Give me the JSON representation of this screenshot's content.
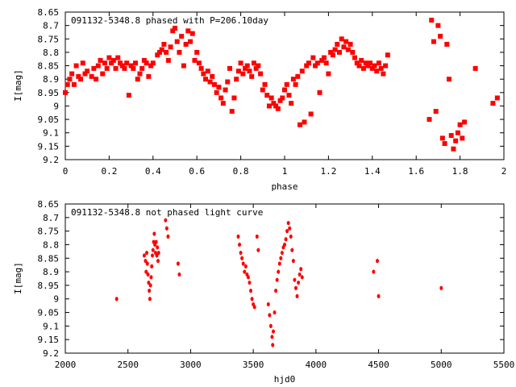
{
  "chart_data": [
    {
      "type": "scatter",
      "title": "091132-5348.8 phased with P=206.10day",
      "xlabel": "phase",
      "ylabel": "I[mag]",
      "xlim": [
        0,
        2
      ],
      "ylim": [
        8.65,
        9.2
      ],
      "y_inverted": true,
      "x_ticks": [
        "0",
        "0.2",
        "0.4",
        "0.6",
        "0.8",
        "1",
        "1.2",
        "1.4",
        "1.6",
        "1.8",
        "2"
      ],
      "y_ticks": [
        "8.65",
        "8.7",
        "8.75",
        "8.8",
        "8.85",
        "8.9",
        "8.95",
        "9",
        "9.05",
        "9.1",
        "9.15",
        "9.2"
      ],
      "grid": false,
      "marker_color": "#ff0000",
      "points": [
        [
          0.0,
          8.95
        ],
        [
          0.01,
          8.92
        ],
        [
          0.02,
          8.9
        ],
        [
          0.03,
          8.88
        ],
        [
          0.04,
          8.92
        ],
        [
          0.05,
          8.85
        ],
        [
          0.06,
          8.89
        ],
        [
          0.07,
          8.9
        ],
        [
          0.08,
          8.84
        ],
        [
          0.09,
          8.88
        ],
        [
          0.1,
          8.87
        ],
        [
          0.12,
          8.89
        ],
        [
          0.13,
          8.86
        ],
        [
          0.14,
          8.9
        ],
        [
          0.15,
          8.85
        ],
        [
          0.16,
          8.83
        ],
        [
          0.17,
          8.88
        ],
        [
          0.18,
          8.84
        ],
        [
          0.19,
          8.86
        ],
        [
          0.2,
          8.82
        ],
        [
          0.21,
          8.84
        ],
        [
          0.22,
          8.83
        ],
        [
          0.23,
          8.86
        ],
        [
          0.24,
          8.82
        ],
        [
          0.25,
          8.84
        ],
        [
          0.26,
          8.85
        ],
        [
          0.27,
          8.86
        ],
        [
          0.28,
          8.84
        ],
        [
          0.29,
          8.96
        ],
        [
          0.3,
          8.85
        ],
        [
          0.31,
          8.86
        ],
        [
          0.32,
          8.84
        ],
        [
          0.33,
          8.9
        ],
        [
          0.34,
          8.88
        ],
        [
          0.35,
          8.86
        ],
        [
          0.36,
          8.83
        ],
        [
          0.37,
          8.84
        ],
        [
          0.38,
          8.89
        ],
        [
          0.39,
          8.85
        ],
        [
          0.4,
          8.84
        ],
        [
          0.42,
          8.81
        ],
        [
          0.43,
          8.8
        ],
        [
          0.44,
          8.79
        ],
        [
          0.45,
          8.77
        ],
        [
          0.46,
          8.8
        ],
        [
          0.47,
          8.83
        ],
        [
          0.48,
          8.78
        ],
        [
          0.49,
          8.72
        ],
        [
          0.5,
          8.71
        ],
        [
          0.51,
          8.76
        ],
        [
          0.52,
          8.8
        ],
        [
          0.53,
          8.74
        ],
        [
          0.54,
          8.85
        ],
        [
          0.55,
          8.77
        ],
        [
          0.56,
          8.72
        ],
        [
          0.57,
          8.76
        ],
        [
          0.58,
          8.73
        ],
        [
          0.59,
          8.83
        ],
        [
          0.6,
          8.8
        ],
        [
          0.61,
          8.84
        ],
        [
          0.62,
          8.86
        ],
        [
          0.63,
          8.88
        ],
        [
          0.64,
          8.9
        ],
        [
          0.65,
          8.87
        ],
        [
          0.66,
          8.91
        ],
        [
          0.67,
          8.89
        ],
        [
          0.68,
          8.92
        ],
        [
          0.69,
          8.95
        ],
        [
          0.7,
          8.93
        ],
        [
          0.71,
          8.97
        ],
        [
          0.72,
          8.99
        ],
        [
          0.73,
          8.94
        ],
        [
          0.74,
          8.91
        ],
        [
          0.75,
          8.86
        ],
        [
          0.76,
          9.02
        ],
        [
          0.77,
          8.97
        ],
        [
          0.78,
          8.9
        ],
        [
          0.79,
          8.87
        ],
        [
          0.8,
          8.84
        ],
        [
          0.81,
          8.88
        ],
        [
          0.82,
          8.86
        ],
        [
          0.83,
          8.85
        ],
        [
          0.84,
          8.87
        ],
        [
          0.85,
          8.89
        ],
        [
          0.86,
          8.84
        ],
        [
          0.87,
          8.86
        ],
        [
          0.88,
          8.85
        ],
        [
          0.89,
          8.88
        ],
        [
          0.9,
          8.94
        ],
        [
          0.91,
          8.92
        ],
        [
          0.92,
          8.96
        ],
        [
          0.93,
          9.0
        ],
        [
          0.94,
          8.97
        ],
        [
          0.95,
          8.99
        ],
        [
          0.96,
          9.0
        ],
        [
          0.97,
          9.01
        ],
        [
          0.98,
          8.98
        ],
        [
          0.99,
          8.97
        ],
        [
          1.0,
          8.94
        ],
        [
          1.01,
          8.92
        ],
        [
          1.02,
          8.96
        ],
        [
          1.03,
          8.99
        ],
        [
          1.04,
          8.9
        ],
        [
          1.05,
          8.92
        ],
        [
          1.06,
          8.89
        ],
        [
          1.07,
          9.07
        ],
        [
          1.08,
          8.87
        ],
        [
          1.09,
          9.06
        ],
        [
          1.1,
          8.85
        ],
        [
          1.11,
          8.84
        ],
        [
          1.12,
          9.03
        ],
        [
          1.13,
          8.82
        ],
        [
          1.14,
          8.85
        ],
        [
          1.15,
          8.84
        ],
        [
          1.16,
          8.95
        ],
        [
          1.17,
          8.83
        ],
        [
          1.18,
          8.82
        ],
        [
          1.19,
          8.84
        ],
        [
          1.2,
          8.88
        ],
        [
          1.21,
          8.8
        ],
        [
          1.22,
          8.81
        ],
        [
          1.23,
          8.79
        ],
        [
          1.24,
          8.77
        ],
        [
          1.25,
          8.8
        ],
        [
          1.26,
          8.75
        ],
        [
          1.27,
          8.78
        ],
        [
          1.28,
          8.76
        ],
        [
          1.29,
          8.79
        ],
        [
          1.3,
          8.77
        ],
        [
          1.31,
          8.8
        ],
        [
          1.32,
          8.82
        ],
        [
          1.33,
          8.84
        ],
        [
          1.34,
          8.85
        ],
        [
          1.35,
          8.83
        ],
        [
          1.36,
          8.86
        ],
        [
          1.37,
          8.84
        ],
        [
          1.38,
          8.85
        ],
        [
          1.39,
          8.84
        ],
        [
          1.4,
          8.86
        ],
        [
          1.41,
          8.85
        ],
        [
          1.42,
          8.87
        ],
        [
          1.43,
          8.84
        ],
        [
          1.44,
          8.86
        ],
        [
          1.45,
          8.88
        ],
        [
          1.46,
          8.85
        ],
        [
          1.47,
          8.81
        ],
        [
          1.66,
          9.05
        ],
        [
          1.67,
          8.68
        ],
        [
          1.68,
          8.76
        ],
        [
          1.69,
          9.02
        ],
        [
          1.7,
          8.7
        ],
        [
          1.71,
          8.74
        ],
        [
          1.72,
          9.12
        ],
        [
          1.73,
          9.14
        ],
        [
          1.74,
          8.77
        ],
        [
          1.75,
          8.9
        ],
        [
          1.76,
          9.11
        ],
        [
          1.77,
          9.16
        ],
        [
          1.78,
          9.13
        ],
        [
          1.79,
          9.1
        ],
        [
          1.8,
          9.07
        ],
        [
          1.81,
          9.12
        ],
        [
          1.82,
          9.06
        ],
        [
          1.87,
          8.86
        ],
        [
          1.95,
          8.99
        ],
        [
          1.97,
          8.97
        ]
      ]
    },
    {
      "type": "scatter",
      "title": "091132-5348.8 not phased light curve",
      "xlabel": "hjd0",
      "ylabel": "I[mag]",
      "xlim": [
        2000,
        5500
      ],
      "ylim": [
        8.65,
        9.2
      ],
      "y_inverted": true,
      "x_ticks": [
        "2000",
        "2500",
        "3000",
        "3500",
        "4000",
        "4500",
        "5000",
        "5500"
      ],
      "y_ticks": [
        "8.65",
        "8.7",
        "8.75",
        "8.8",
        "8.85",
        "8.9",
        "8.95",
        "9",
        "9.05",
        "9.1",
        "9.15",
        "9.2"
      ],
      "grid": false,
      "marker_color": "#ff0000",
      "points": [
        [
          2410,
          9.0
        ],
        [
          2630,
          8.84
        ],
        [
          2640,
          8.86
        ],
        [
          2645,
          8.9
        ],
        [
          2650,
          8.83
        ],
        [
          2655,
          8.87
        ],
        [
          2660,
          8.91
        ],
        [
          2665,
          8.94
        ],
        [
          2670,
          8.97
        ],
        [
          2675,
          9.0
        ],
        [
          2680,
          8.95
        ],
        [
          2685,
          8.92
        ],
        [
          2690,
          8.88
        ],
        [
          2695,
          8.84
        ],
        [
          2700,
          8.82
        ],
        [
          2705,
          8.79
        ],
        [
          2710,
          8.76
        ],
        [
          2715,
          8.8
        ],
        [
          2720,
          8.83
        ],
        [
          2725,
          8.79
        ],
        [
          2730,
          8.84
        ],
        [
          2735,
          8.81
        ],
        [
          2740,
          8.86
        ],
        [
          2745,
          8.83
        ],
        [
          2800,
          8.71
        ],
        [
          2810,
          8.74
        ],
        [
          2820,
          8.77
        ],
        [
          2900,
          8.87
        ],
        [
          2910,
          8.91
        ],
        [
          3380,
          8.77
        ],
        [
          3390,
          8.8
        ],
        [
          3400,
          8.83
        ],
        [
          3410,
          8.85
        ],
        [
          3420,
          8.87
        ],
        [
          3430,
          8.9
        ],
        [
          3440,
          8.88
        ],
        [
          3450,
          8.91
        ],
        [
          3460,
          8.92
        ],
        [
          3470,
          8.94
        ],
        [
          3480,
          8.97
        ],
        [
          3490,
          9.0
        ],
        [
          3500,
          9.02
        ],
        [
          3510,
          9.03
        ],
        [
          3530,
          8.77
        ],
        [
          3540,
          8.82
        ],
        [
          3620,
          9.02
        ],
        [
          3630,
          9.06
        ],
        [
          3640,
          9.1
        ],
        [
          3650,
          9.14
        ],
        [
          3655,
          9.17
        ],
        [
          3660,
          9.12
        ],
        [
          3670,
          9.05
        ],
        [
          3680,
          8.97
        ],
        [
          3690,
          8.93
        ],
        [
          3700,
          8.9
        ],
        [
          3710,
          8.87
        ],
        [
          3720,
          8.85
        ],
        [
          3730,
          8.83
        ],
        [
          3740,
          8.81
        ],
        [
          3750,
          8.8
        ],
        [
          3760,
          8.78
        ],
        [
          3770,
          8.75
        ],
        [
          3780,
          8.72
        ],
        [
          3790,
          8.74
        ],
        [
          3800,
          8.77
        ],
        [
          3810,
          8.82
        ],
        [
          3820,
          8.86
        ],
        [
          3830,
          8.93
        ],
        [
          3840,
          8.96
        ],
        [
          3850,
          8.99
        ],
        [
          3860,
          8.94
        ],
        [
          3870,
          8.91
        ],
        [
          3880,
          8.89
        ],
        [
          3890,
          8.92
        ],
        [
          4460,
          8.9
        ],
        [
          4490,
          8.86
        ],
        [
          4500,
          8.99
        ],
        [
          5000,
          8.96
        ]
      ]
    }
  ]
}
